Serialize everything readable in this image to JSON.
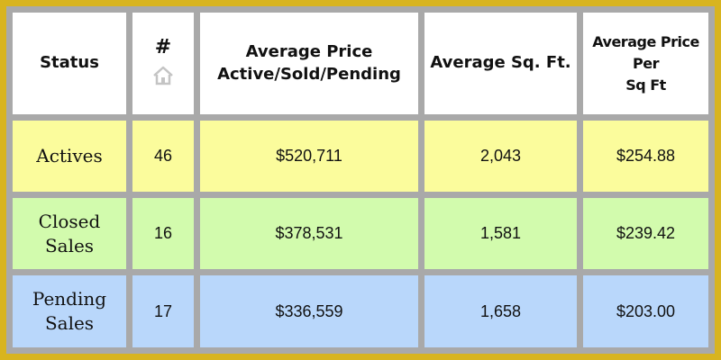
{
  "header": {
    "status": "Status",
    "count": "#",
    "avg_price_line1": "Average Price",
    "avg_price_line2": "Active/Sold/Pending",
    "avg_sqft": "Average Sq. Ft.",
    "ppsf_line1": "Average Price",
    "ppsf_line2": "Per",
    "ppsf_line3": "Sq Ft",
    "count_icon": "home-icon"
  },
  "rows": [
    {
      "status_line1": "Actives",
      "status_line2": "",
      "count": "46",
      "avg_price": "$520,711",
      "avg_sqft": "2,043",
      "ppsf": "$254.88",
      "color": "#fbfc9c"
    },
    {
      "status_line1": "Closed",
      "status_line2": "Sales",
      "count": "16",
      "avg_price": "$378,531",
      "avg_sqft": "1,581",
      "ppsf": "$239.42",
      "color": "#d2fbad"
    },
    {
      "status_line1": "Pending",
      "status_line2": "Sales",
      "count": "17",
      "avg_price": "$336,559",
      "avg_sqft": "1,658",
      "ppsf": "$203.00",
      "color": "#b9d7fb"
    }
  ],
  "colors": {
    "border_outer": "#d8b41f",
    "grid": "#a9a9a9",
    "header_bg": "#ffffff"
  }
}
